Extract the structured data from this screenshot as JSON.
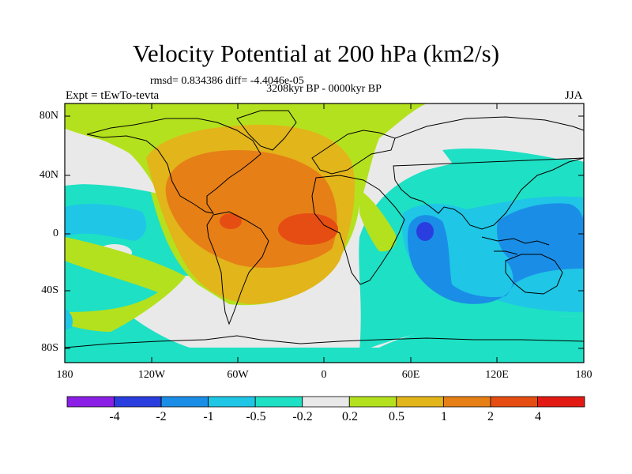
{
  "title": "Velocity Potential at 200 hPa (km2/s)",
  "stats": "rmsd= 0.834386 diff= -4.4046e-05",
  "period": "3208kyr BP - 0000kyr BP",
  "experiment": "Expt = tEwTo-tevta",
  "season": "JJA",
  "y_axis_labels": [
    "80N",
    "40N",
    "0",
    "40S",
    "80S"
  ],
  "x_axis_labels": [
    "180",
    "120W",
    "60W",
    "0",
    "60E",
    "120E",
    "180"
  ],
  "colorbar": {
    "labels": [
      "-4",
      "-2",
      "-1",
      "-0.5",
      "-0.2",
      "0.2",
      "0.5",
      "1",
      "2",
      "4"
    ],
    "colors": [
      "#8b1fe6",
      "#2a3ee0",
      "#1a8ee6",
      "#1fc6e6",
      "#1ee0c4",
      "#e9e9e9",
      "#b4e11e",
      "#e2b51a",
      "#e67f16",
      "#e64d12",
      "#e31a13"
    ]
  },
  "palette": {
    "land_line": "#000000",
    "neutral": "#e9e9e9",
    "lightGreen": "#b4e11e",
    "teal": "#1ee0c4",
    "cyan": "#1fc6e6",
    "blue": "#1a8ee6",
    "darkBlue": "#2a3ee0",
    "orange": "#e2b51a",
    "darkOrange": "#e67f16",
    "red": "#e64d12"
  }
}
